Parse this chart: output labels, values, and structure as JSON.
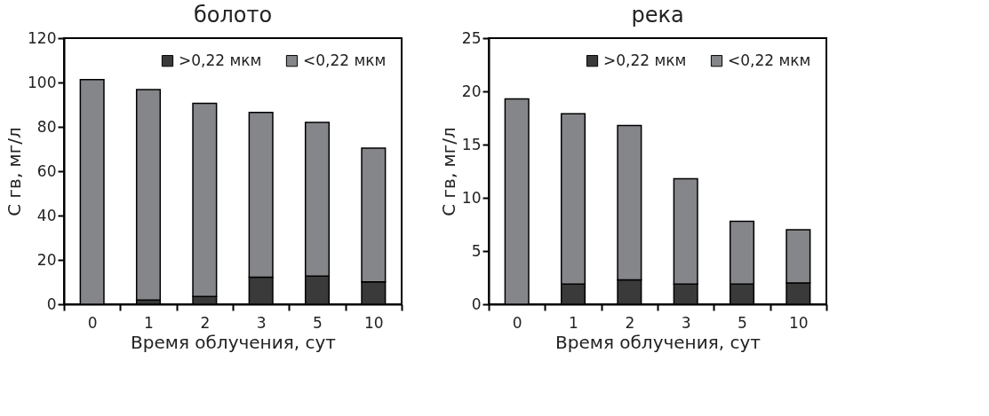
{
  "chart_data": [
    {
      "type": "bar",
      "title": "болото",
      "xlabel": "Время облучения, сут",
      "ylabel": "С гв, мг/л",
      "categories": [
        "0",
        "1",
        "2",
        "3",
        "5",
        "10"
      ],
      "stacked": true,
      "ylim": [
        0,
        120
      ],
      "yticks": [
        0,
        20,
        40,
        60,
        80,
        100,
        120
      ],
      "grid": false,
      "legend": "top right",
      "series": [
        {
          "name": ">0,22 мкм",
          "color": "#3a3a3a",
          "values": [
            0,
            1.9,
            3.5,
            12.2,
            12.7,
            10.1
          ]
        },
        {
          "name": "<0,22 мкм",
          "color": "#85868a",
          "values": [
            101.3,
            94.9,
            87.1,
            74.3,
            69.3,
            60.3
          ]
        }
      ]
    },
    {
      "type": "bar",
      "title": "река",
      "xlabel": "Время облучения, сут",
      "ylabel": "С гв, мг/л",
      "categories": [
        "0",
        "1",
        "2",
        "3",
        "5",
        "10"
      ],
      "stacked": true,
      "ylim": [
        0,
        25
      ],
      "yticks": [
        0,
        5,
        10,
        15,
        20,
        25
      ],
      "grid": false,
      "legend": "top right",
      "series": [
        {
          "name": ">0,22 мкм",
          "color": "#3a3a3a",
          "values": [
            0,
            1.9,
            2.3,
            1.9,
            1.9,
            2.0
          ]
        },
        {
          "name": "<0,22 мкм",
          "color": "#85868a",
          "values": [
            19.3,
            16.0,
            14.5,
            9.9,
            5.9,
            5.0
          ]
        }
      ]
    }
  ]
}
